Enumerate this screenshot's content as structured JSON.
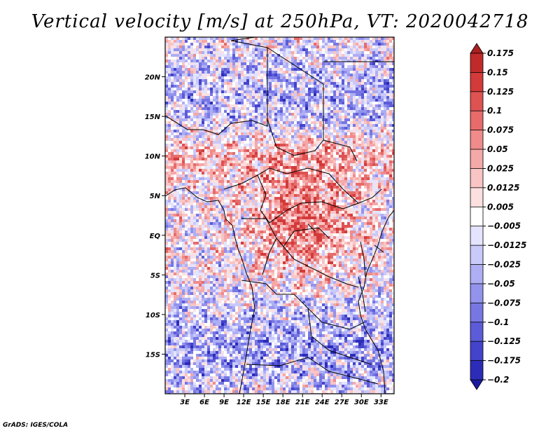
{
  "title": "Vertical velocity [m/s] at 250hPa, VT: 2020042718",
  "credit": "GrADS: IGES/COLA",
  "map": {
    "variable": "Vertical velocity",
    "units": "m/s",
    "level": "250hPa",
    "valid_time": "2020042718",
    "lon_range": [
      0,
      35
    ],
    "lat_range": [
      -20,
      25
    ],
    "lat_ticks": [
      {
        "value": 20,
        "label": "20N"
      },
      {
        "value": 15,
        "label": "15N"
      },
      {
        "value": 10,
        "label": "10N"
      },
      {
        "value": 5,
        "label": "5N"
      },
      {
        "value": 0,
        "label": "EQ"
      },
      {
        "value": -5,
        "label": "5S"
      },
      {
        "value": -10,
        "label": "10S"
      },
      {
        "value": -15,
        "label": "15S"
      }
    ],
    "lon_ticks": [
      {
        "value": 3,
        "label": "3E"
      },
      {
        "value": 6,
        "label": "6E"
      },
      {
        "value": 9,
        "label": "9E"
      },
      {
        "value": 12,
        "label": "12E"
      },
      {
        "value": 15,
        "label": "15E"
      },
      {
        "value": 18,
        "label": "18E"
      },
      {
        "value": 21,
        "label": "21E"
      },
      {
        "value": 24,
        "label": "24E"
      },
      {
        "value": 27,
        "label": "27E"
      },
      {
        "value": 30,
        "label": "30E"
      },
      {
        "value": 33,
        "label": "33E"
      }
    ]
  },
  "colorbar": {
    "bins": [
      {
        "color": "#aa1f1f"
      },
      {
        "color": "#c12a2a"
      },
      {
        "color": "#d33a3a"
      },
      {
        "color": "#de5252"
      },
      {
        "color": "#e76b6b"
      },
      {
        "color": "#ef8b8b"
      },
      {
        "color": "#f5a8a8"
      },
      {
        "color": "#f9c4c4"
      },
      {
        "color": "#fce0e0"
      },
      {
        "color": "#ffffff"
      },
      {
        "color": "#e4e4ff"
      },
      {
        "color": "#c9c9fa"
      },
      {
        "color": "#aeaef5"
      },
      {
        "color": "#9393ee"
      },
      {
        "color": "#7777e4"
      },
      {
        "color": "#5c5cd9"
      },
      {
        "color": "#4343cc"
      },
      {
        "color": "#2c2cb8"
      },
      {
        "color": "#1a1aa0"
      }
    ],
    "labels": [
      "0.175",
      "0.15",
      "0.125",
      "0.1",
      "0.075",
      "0.05",
      "0.025",
      "0.0125",
      "0.005",
      "-0.005",
      "-0.0125",
      "-0.025",
      "-0.05",
      "-0.075",
      "-0.1",
      "-0.125",
      "-0.175",
      "-0.2"
    ]
  }
}
